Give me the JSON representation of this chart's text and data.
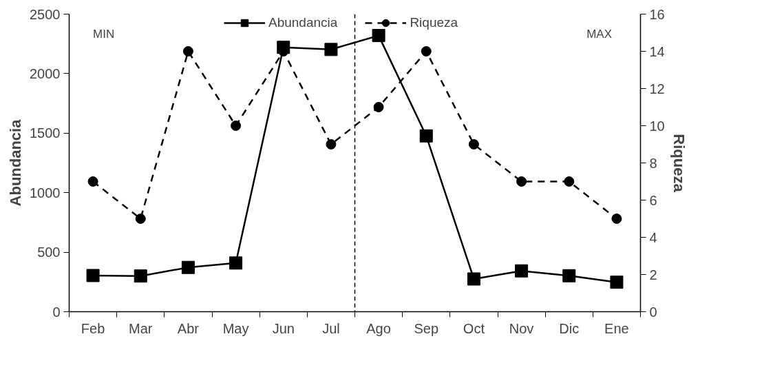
{
  "chart_data": {
    "type": "line",
    "categories": [
      "Feb",
      "Mar",
      "Abr",
      "May",
      "Jun",
      "Jul",
      "Ago",
      "Sep",
      "Oct",
      "Nov",
      "Dic",
      "Ene"
    ],
    "series": [
      {
        "name": "Abundancia",
        "color": "#000000",
        "marker": "square",
        "line_style": "solid",
        "values": [
          304,
          300,
          372,
          409,
          2221,
          2203,
          2320,
          1477,
          275,
          343,
          302,
          248
        ]
      },
      {
        "name": "Riqueza",
        "color": "#000000",
        "marker": "circle",
        "line_style": "dashed",
        "axis": "y2",
        "values": [
          7,
          5,
          14,
          10,
          14,
          9,
          11,
          14,
          9,
          7,
          7,
          5
        ]
      }
    ],
    "ylabel": "Abundancia",
    "y2label": "Riqueza",
    "ylim": [
      0,
      2500
    ],
    "yticks": [
      0,
      500,
      1000,
      1500,
      2000,
      2500
    ],
    "y2lim": [
      0,
      16
    ],
    "y2ticks": [
      0,
      2,
      4,
      6,
      8,
      10,
      12,
      14,
      16
    ],
    "annotations": [
      "MIN",
      "MAX"
    ],
    "grid": false,
    "legend": "top"
  }
}
